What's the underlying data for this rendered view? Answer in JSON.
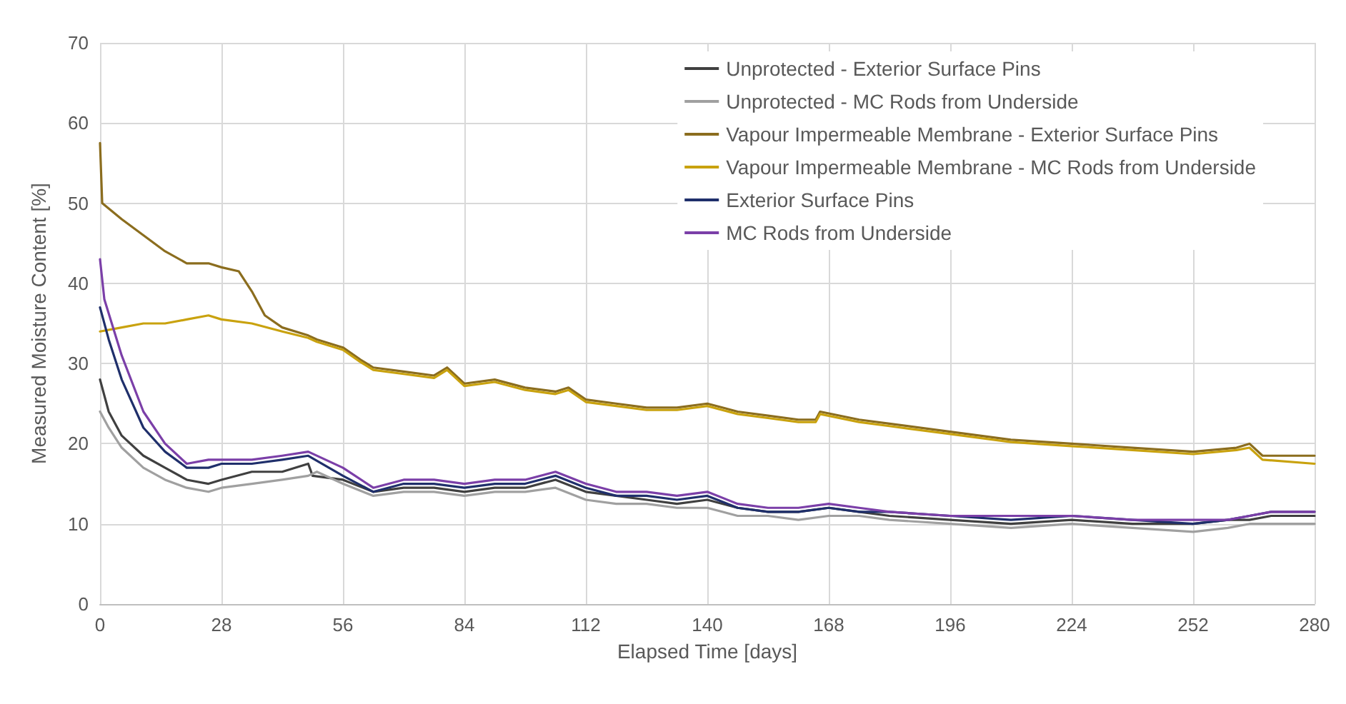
{
  "chart_data": {
    "type": "line",
    "xlabel": "Elapsed Time [days]",
    "ylabel": "Measured Moisture Content [%]",
    "xlim": [
      0,
      280
    ],
    "xticks": [
      0,
      28,
      56,
      84,
      112,
      140,
      168,
      196,
      224,
      252,
      280
    ],
    "ylim": [
      0,
      70
    ],
    "yticks": [
      0,
      10,
      20,
      30,
      40,
      50,
      60,
      70
    ],
    "grid": true,
    "legend": "top right",
    "marker": "none",
    "line_style": "solid",
    "series": [
      {
        "name": "Unprotected - Exterior Surface Pins",
        "color": "#404040",
        "x": [
          0,
          2,
          5,
          10,
          15,
          20,
          25,
          28,
          35,
          42,
          48,
          49,
          56,
          63,
          70,
          77,
          84,
          91,
          98,
          105,
          112,
          119,
          126,
          133,
          140,
          147,
          154,
          161,
          168,
          175,
          182,
          196,
          210,
          224,
          238,
          252,
          260,
          265,
          270,
          280
        ],
        "values": [
          28,
          24,
          21,
          18.5,
          17,
          15.5,
          15,
          15.5,
          16.5,
          16.5,
          17.5,
          16,
          15.5,
          14,
          14.5,
          14.5,
          14,
          14.5,
          14.5,
          15.5,
          14,
          13.5,
          13,
          12.5,
          13,
          12,
          11.5,
          11.5,
          12,
          11.5,
          11,
          10.5,
          10,
          10.5,
          10,
          10,
          10.5,
          10.5,
          11,
          11
        ]
      },
      {
        "name": "Unprotected - MC Rods from Underside",
        "color": "#a0a0a0",
        "x": [
          0,
          2,
          5,
          10,
          15,
          20,
          25,
          28,
          35,
          42,
          48,
          50,
          56,
          63,
          70,
          77,
          84,
          91,
          98,
          105,
          112,
          119,
          126,
          133,
          140,
          147,
          154,
          161,
          168,
          175,
          182,
          196,
          210,
          224,
          238,
          252,
          260,
          265,
          270,
          280
        ],
        "values": [
          24,
          22,
          19.5,
          17,
          15.5,
          14.5,
          14,
          14.5,
          15,
          15.5,
          16,
          16.5,
          15,
          13.5,
          14,
          14,
          13.5,
          14,
          14,
          14.5,
          13,
          12.5,
          12.5,
          12,
          12,
          11,
          11,
          10.5,
          11,
          11,
          10.5,
          10,
          9.5,
          10,
          9.5,
          9,
          9.5,
          10,
          10,
          10
        ]
      },
      {
        "name": "Vapour Impermeable Membrane - Exterior Surface Pins",
        "color": "#8b6d1e",
        "x": [
          0,
          0.5,
          5,
          10,
          15,
          20,
          25,
          28,
          32,
          35,
          38,
          42,
          48,
          50,
          56,
          60,
          63,
          70,
          77,
          80,
          84,
          91,
          98,
          105,
          108,
          112,
          119,
          126,
          133,
          140,
          147,
          154,
          161,
          165,
          166,
          175,
          182,
          196,
          210,
          224,
          238,
          252,
          262,
          265,
          268,
          280
        ],
        "values": [
          57.5,
          50,
          48,
          46,
          44,
          42.5,
          42.5,
          42,
          41.5,
          39,
          36,
          34.5,
          33.5,
          33,
          32,
          30.5,
          29.5,
          29,
          28.5,
          29.5,
          27.5,
          28,
          27,
          26.5,
          27,
          25.5,
          25,
          24.5,
          24.5,
          25,
          24,
          23.5,
          23,
          23,
          24,
          23,
          22.5,
          21.5,
          20.5,
          20,
          19.5,
          19,
          19.5,
          20,
          18.5,
          18.5
        ]
      },
      {
        "name": "Vapour Impermeable Membrane - MC Rods from Underside",
        "color": "#c9a20e",
        "x": [
          0,
          5,
          10,
          15,
          20,
          25,
          28,
          35,
          42,
          48,
          50,
          56,
          60,
          63,
          70,
          77,
          80,
          84,
          91,
          98,
          105,
          108,
          112,
          119,
          126,
          133,
          140,
          147,
          154,
          161,
          165,
          166,
          175,
          182,
          196,
          210,
          224,
          238,
          252,
          262,
          265,
          268,
          280
        ],
        "values": [
          34,
          34.5,
          35,
          35,
          35.5,
          36,
          35.5,
          35,
          34,
          33.2,
          32.7,
          31.7,
          30.2,
          29.2,
          28.7,
          28.2,
          29.2,
          27.2,
          27.7,
          26.7,
          26.2,
          26.7,
          25.2,
          24.7,
          24.2,
          24.2,
          24.7,
          23.7,
          23.2,
          22.7,
          22.7,
          23.7,
          22.7,
          22.2,
          21.2,
          20.2,
          19.7,
          19.2,
          18.7,
          19.2,
          19.5,
          18,
          17.5
        ]
      },
      {
        "name": "Exterior Surface Pins",
        "color": "#1f2f6b",
        "x": [
          0,
          2,
          5,
          10,
          15,
          20,
          25,
          28,
          35,
          42,
          48,
          56,
          63,
          70,
          77,
          84,
          91,
          98,
          105,
          112,
          119,
          126,
          133,
          140,
          147,
          154,
          161,
          168,
          175,
          182,
          196,
          210,
          224,
          238,
          252,
          260,
          265,
          270,
          280
        ],
        "values": [
          37,
          33,
          28,
          22,
          19,
          17,
          17,
          17.5,
          17.5,
          18,
          18.5,
          16,
          14,
          15,
          15,
          14.5,
          15,
          15,
          16,
          14.5,
          13.5,
          13.5,
          13,
          13.5,
          12,
          11.5,
          11.5,
          12,
          11.5,
          11.5,
          11,
          10.5,
          11,
          10.5,
          10,
          10.5,
          11,
          11.5,
          11.5
        ]
      },
      {
        "name": "MC Rods from Underside",
        "color": "#7b3fa8",
        "x": [
          0,
          1,
          5,
          10,
          15,
          20,
          25,
          28,
          35,
          42,
          48,
          56,
          63,
          70,
          77,
          84,
          91,
          98,
          105,
          112,
          119,
          126,
          133,
          140,
          147,
          154,
          161,
          168,
          175,
          182,
          196,
          210,
          224,
          238,
          252,
          260,
          265,
          270,
          280
        ],
        "values": [
          43,
          38,
          31,
          24,
          20,
          17.5,
          18,
          18,
          18,
          18.5,
          19,
          17,
          14.5,
          15.5,
          15.5,
          15,
          15.5,
          15.5,
          16.5,
          15,
          14,
          14,
          13.5,
          14,
          12.5,
          12,
          12,
          12.5,
          12,
          11.5,
          11,
          11,
          11,
          10.5,
          10.5,
          10.5,
          11,
          11.5,
          11.5
        ]
      }
    ]
  }
}
